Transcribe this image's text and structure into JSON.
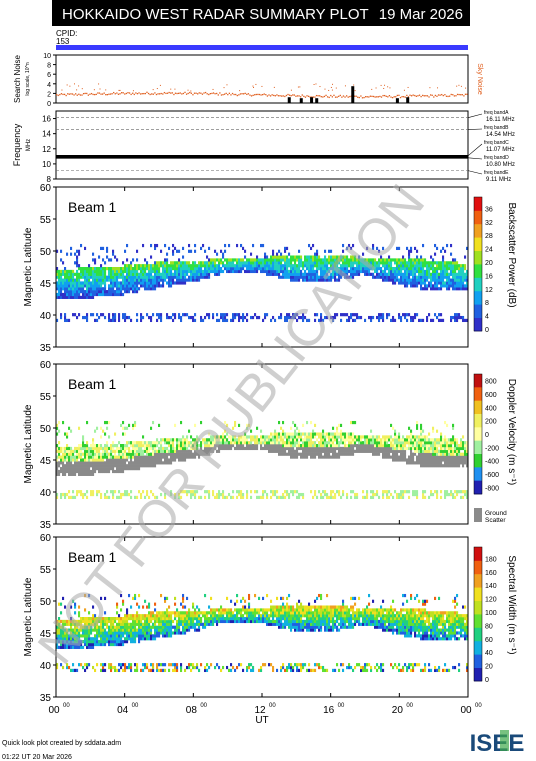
{
  "header": {
    "title": "HOKKAIDO WEST RADAR SUMMARY PLOT",
    "date": "19 Mar 2026",
    "cpid_label": "CPID:",
    "cpid_value": "153"
  },
  "colors": {
    "header_bg": "#000000",
    "header_text": "#ffffff",
    "cpid_bar": "#3a3aff",
    "sky_noise": "#e06020",
    "ground_scatter": "#8a8a8a",
    "watermark": "#b0b0b0"
  },
  "watermark": "NOT FOR PUBLICATION",
  "footer": {
    "credit": "Quick look plot created by sddata.adm",
    "timestamp": "01:22 UT 20 Mar 2026",
    "logo_text": "ISEE"
  },
  "chart_data": [
    {
      "type": "scatter",
      "id": "search_noise",
      "ylabel": "Search Noise",
      "ylabel_sub": "log scale, 10^n",
      "ylim": [
        0,
        10
      ],
      "yticks": [
        0,
        2,
        4,
        6,
        8,
        10
      ],
      "series_label": "Sky Noise",
      "sky_noise_level": 1.8,
      "search_noise_bars": [
        {
          "ut": 13.5,
          "value": 1.2
        },
        {
          "ut": 14.2,
          "value": 1.0
        },
        {
          "ut": 14.8,
          "value": 1.2
        },
        {
          "ut": 15.1,
          "value": 1.0
        },
        {
          "ut": 17.2,
          "value": 3.5
        },
        {
          "ut": 19.8,
          "value": 1.0
        },
        {
          "ut": 20.4,
          "value": 1.2
        }
      ]
    },
    {
      "type": "line",
      "id": "frequency",
      "ylabel": "Frequency",
      "ylabel_unit": "MHz",
      "ylim": [
        8,
        17
      ],
      "yticks": [
        8,
        10,
        12,
        14,
        16
      ],
      "freq_bands": [
        {
          "label": "freq bandA",
          "value": "16.11 MHz",
          "mhz": 16.11,
          "style": "dashed"
        },
        {
          "label": "freq bandB",
          "value": "14.54 MHz",
          "mhz": 14.54,
          "style": "dashed"
        },
        {
          "label": "freq bandC",
          "value": "11.07 MHz",
          "mhz": 11.07,
          "style": "solid"
        },
        {
          "label": "freq bandD",
          "value": "10.80 MHz",
          "mhz": 10.8,
          "style": "solid"
        },
        {
          "label": "freq bandE",
          "value": "9.11 MHz",
          "mhz": 9.11,
          "style": "dashed"
        }
      ]
    },
    {
      "type": "heatmap",
      "id": "power",
      "beam_label": "Beam  1",
      "ylabel": "Magnetic Latitude",
      "ylim": [
        35,
        60
      ],
      "yticks": [
        35,
        40,
        45,
        50,
        55,
        60
      ],
      "colorbar_label": "Backscatter Power (dB)",
      "colorbar_ticks": [
        "0",
        "4",
        "8",
        "12",
        "16",
        "20",
        "24",
        "28",
        "32",
        "36"
      ],
      "bands": [
        {
          "lat_top": [
            46.8,
            47.2,
            47.5,
            48.0,
            48.3,
            48.5,
            48.8,
            49.0,
            49.0,
            48.8,
            48.8,
            48.3,
            47.8
          ],
          "lat_bot": [
            42.5,
            42.5,
            43.0,
            44.0,
            45.0,
            46.5,
            46.3,
            45.0,
            45.0,
            46.0,
            44.5,
            43.5,
            43.5
          ]
        }
      ]
    },
    {
      "type": "heatmap",
      "id": "velocity",
      "beam_label": "Beam  1",
      "ylabel": "Magnetic Latitude",
      "ylim": [
        35,
        60
      ],
      "yticks": [
        35,
        40,
        45,
        50,
        55,
        60
      ],
      "colorbar_label": "Doppler Velocity (m s⁻¹)",
      "colorbar_ticks": [
        "800",
        "600",
        "400",
        "200",
        "0",
        "-200",
        "-400",
        "-600",
        "-800"
      ],
      "ground_scatter_label": "Ground Scatter"
    },
    {
      "type": "heatmap",
      "id": "width",
      "beam_label": "Beam  1",
      "ylabel": "Magnetic Latitude",
      "ylim": [
        35,
        60
      ],
      "yticks": [
        35,
        40,
        45,
        50,
        55,
        60
      ],
      "xlabel": "UT",
      "xticks": [
        "00",
        "04",
        "08",
        "12",
        "16",
        "20",
        "00"
      ],
      "xtick_suffix": "00",
      "xlim": [
        0,
        24
      ],
      "colorbar_label": "Spectral Width (m s⁻¹)",
      "colorbar_ticks": [
        "0",
        "20",
        "40",
        "60",
        "80",
        "100",
        "120",
        "140",
        "160",
        "180"
      ]
    }
  ]
}
